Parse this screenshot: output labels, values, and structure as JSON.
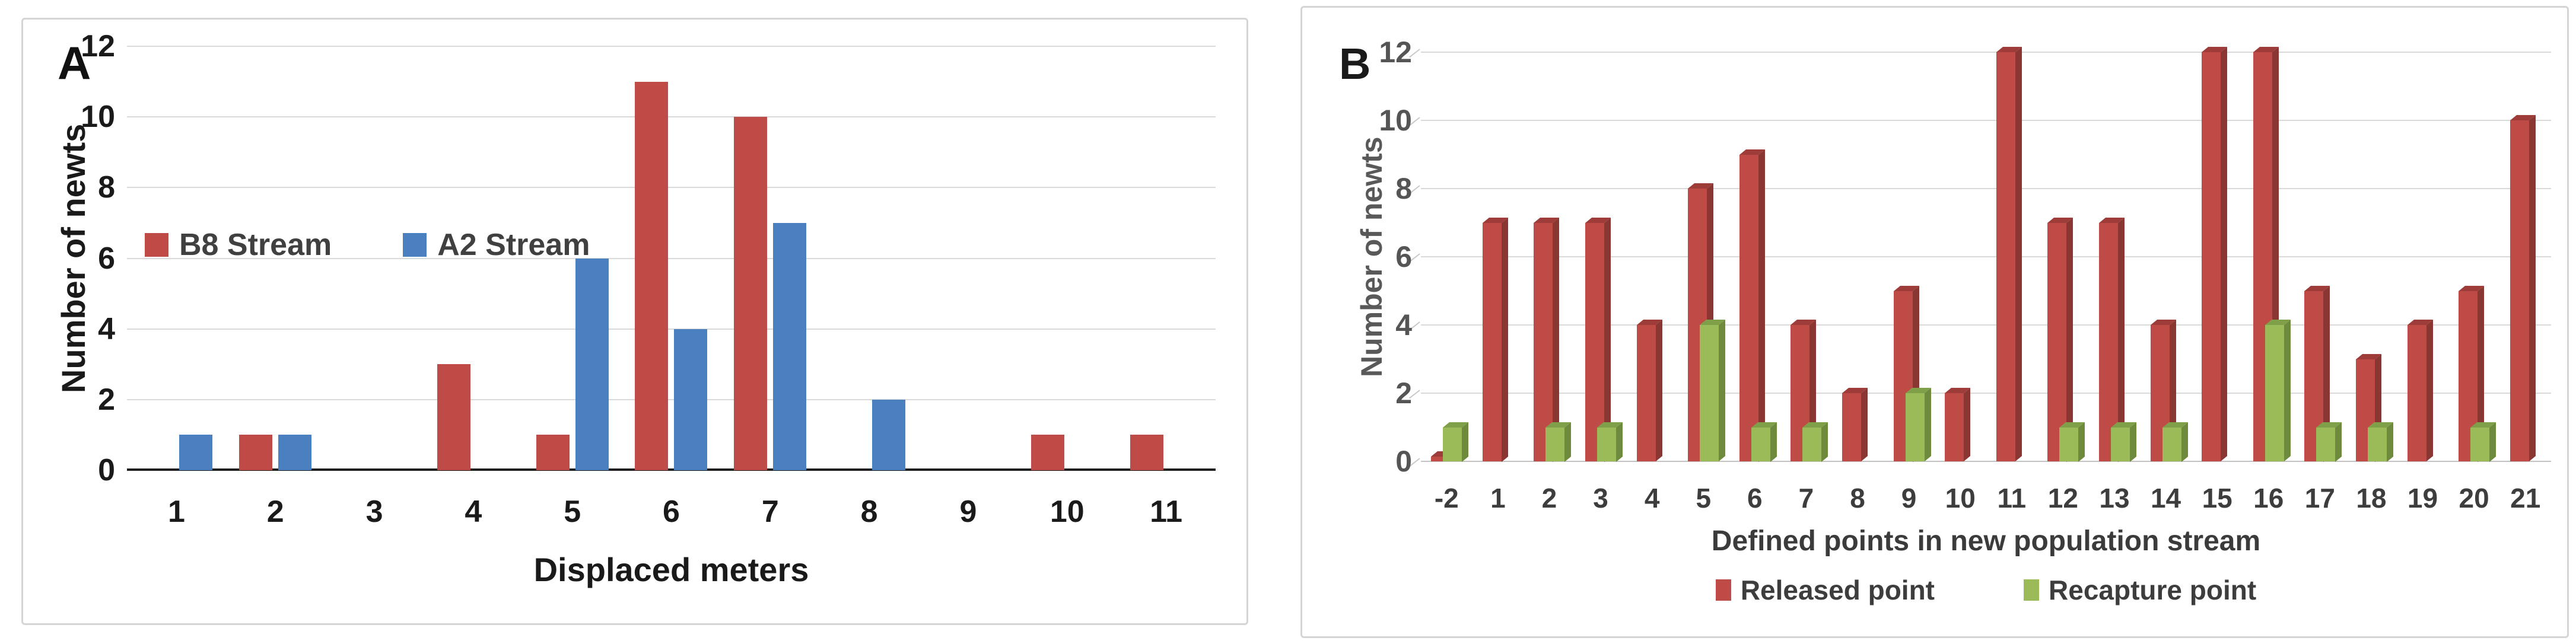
{
  "figure": {
    "background": "#ffffff",
    "panel_border_color": "#d5d5d5"
  },
  "chart_data": [
    {
      "type": "bar",
      "panel_label": "A",
      "xlabel": "Displaced meters",
      "ylabel": "Number of newts",
      "categories": [
        "1",
        "2",
        "3",
        "4",
        "5",
        "6",
        "7",
        "8",
        "9",
        "10",
        "11"
      ],
      "series": [
        {
          "name": "B8 Stream",
          "color": "#bf4b47",
          "values": [
            0,
            1,
            0,
            3,
            1,
            11,
            10,
            0,
            0,
            1,
            1
          ]
        },
        {
          "name": "A2 Stream",
          "color": "#4b80c0",
          "values": [
            1,
            1,
            0,
            0,
            6,
            4,
            7,
            2,
            0,
            0,
            0
          ]
        }
      ],
      "ylim": [
        0,
        12
      ],
      "yticks": [
        0,
        2,
        4,
        6,
        8,
        10,
        12
      ],
      "grid": true,
      "grid_color": "#d9d9d9",
      "axis_color": "#1f1f1f",
      "legend_position": "inside-upper-left"
    },
    {
      "type": "bar-3d",
      "panel_label": "B",
      "xlabel": "Defined points in new population stream",
      "ylabel": "Number of newts",
      "categories": [
        "-2",
        "1",
        "2",
        "3",
        "4",
        "5",
        "6",
        "7",
        "8",
        "9",
        "10",
        "11",
        "12",
        "13",
        "14",
        "15",
        "16",
        "17",
        "18",
        "19",
        "20",
        "21"
      ],
      "series": [
        {
          "name": "Released point",
          "color": "#bf4b47",
          "side_color": "#8a3734",
          "top_color": "#9e3c39",
          "values": [
            0,
            7,
            7,
            7,
            4,
            8,
            9,
            4,
            2,
            5,
            2,
            12,
            7,
            7,
            4,
            12,
            12,
            5,
            3,
            4,
            5,
            10
          ]
        },
        {
          "name": "Recapture point",
          "color": "#9bbb59",
          "side_color": "#6e8a3c",
          "top_color": "#7fa049",
          "values": [
            1,
            0,
            1,
            1,
            0,
            4,
            1,
            1,
            0,
            2,
            0,
            0,
            1,
            1,
            1,
            0,
            4,
            1,
            1,
            0,
            1,
            0
          ]
        }
      ],
      "ylim": [
        0,
        12
      ],
      "yticks": [
        0,
        2,
        4,
        6,
        8,
        10,
        12
      ],
      "grid": true,
      "grid_color": "#d9d9d9",
      "axis_color": "#c3c3c3",
      "legend_position": "bottom",
      "zero_base_series": [
        0
      ]
    }
  ]
}
